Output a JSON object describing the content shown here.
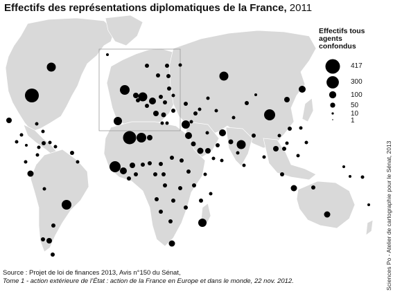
{
  "title": {
    "main": "Effectifs des représentations diplomatiques de la France,",
    "year": "2011"
  },
  "legend": {
    "title": "Effectifs tous agents confondus",
    "entries": [
      {
        "label": "417",
        "value": 417
      },
      {
        "label": "300",
        "value": 300
      },
      {
        "label": "100",
        "value": 100
      },
      {
        "label": "50",
        "value": 50
      },
      {
        "label": "10",
        "value": 10
      },
      {
        "label": "1",
        "value": 1
      }
    ]
  },
  "source": {
    "line1": "Source : Projet de loi de finances 2013, Avis n°150 du Sénat,",
    "line2": "Tome 1 - action extérieure de l’État : action de la France en Europe et dans le monde, 22 nov. 2012."
  },
  "credit": "Sciences Po - Atelier de cartographie pour le Sénat, 2013",
  "colors": {
    "land": "#d9d9d9",
    "symbol": "#000000",
    "background": "#ffffff"
  }
}
